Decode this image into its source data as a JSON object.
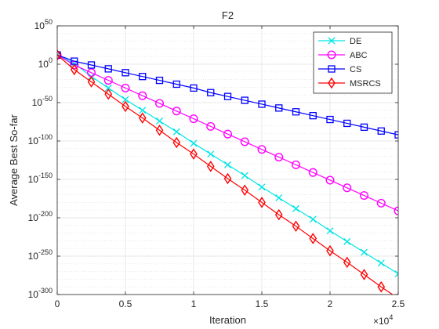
{
  "chart_data": {
    "type": "line",
    "title": "F2",
    "xlabel": "Iteration",
    "ylabel": "Average Best So-far",
    "x_multiplier": "×10^4",
    "xlim": [
      0,
      25000
    ],
    "ylim_log10": [
      -300,
      50
    ],
    "yscale": "log",
    "grid": true,
    "minor_grid": true,
    "legend_position": "top-right",
    "x_ticks": [
      "0",
      "0.5",
      "1",
      "1.5",
      "2",
      "2.5"
    ],
    "y_ticks": [
      {
        "base": "10",
        "exp": "50"
      },
      {
        "base": "10",
        "exp": "0"
      },
      {
        "base": "10",
        "exp": "-50"
      },
      {
        "base": "10",
        "exp": "-100"
      },
      {
        "base": "10",
        "exp": "-150"
      },
      {
        "base": "10",
        "exp": "-200"
      },
      {
        "base": "10",
        "exp": "-250"
      },
      {
        "base": "10",
        "exp": "-300"
      }
    ],
    "series": [
      {
        "name": "DE",
        "color": "#00e5e5",
        "marker": "x",
        "log10_points": [
          [
            0,
            12
          ],
          [
            1250,
            1
          ],
          [
            2500,
            -16
          ],
          [
            3750,
            -31
          ],
          [
            5000,
            -46
          ],
          [
            6250,
            -60
          ],
          [
            7500,
            -74
          ],
          [
            8750,
            -88
          ],
          [
            10000,
            -103
          ],
          [
            11250,
            -117
          ],
          [
            12500,
            -131
          ],
          [
            13750,
            -145
          ],
          [
            15000,
            -160
          ],
          [
            16250,
            -174
          ],
          [
            17500,
            -188
          ],
          [
            18750,
            -202
          ],
          [
            20000,
            -217
          ],
          [
            21250,
            -231
          ],
          [
            22500,
            -245
          ],
          [
            23750,
            -259
          ],
          [
            25000,
            -273
          ]
        ]
      },
      {
        "name": "ABC",
        "color": "#ff00ff",
        "marker": "o",
        "log10_points": [
          [
            0,
            12
          ],
          [
            1250,
            -1
          ],
          [
            2500,
            -11
          ],
          [
            3750,
            -21
          ],
          [
            5000,
            -31
          ],
          [
            6250,
            -41
          ],
          [
            7500,
            -51
          ],
          [
            8750,
            -61
          ],
          [
            10000,
            -71
          ],
          [
            11250,
            -81
          ],
          [
            12500,
            -91
          ],
          [
            13750,
            -101
          ],
          [
            15000,
            -111
          ],
          [
            16250,
            -121
          ],
          [
            17500,
            -131
          ],
          [
            18750,
            -141
          ],
          [
            20000,
            -151
          ],
          [
            21250,
            -161
          ],
          [
            22500,
            -171
          ],
          [
            23750,
            -181
          ],
          [
            25000,
            -191
          ]
        ]
      },
      {
        "name": "CS",
        "color": "#0000ff",
        "marker": "s",
        "log10_points": [
          [
            0,
            12
          ],
          [
            1250,
            4
          ],
          [
            2500,
            -1
          ],
          [
            3750,
            -6
          ],
          [
            5000,
            -11
          ],
          [
            6250,
            -16
          ],
          [
            7500,
            -21
          ],
          [
            8750,
            -26
          ],
          [
            10000,
            -31
          ],
          [
            11250,
            -37
          ],
          [
            12500,
            -42
          ],
          [
            13750,
            -47
          ],
          [
            15000,
            -52
          ],
          [
            16250,
            -57
          ],
          [
            17500,
            -62
          ],
          [
            18750,
            -67
          ],
          [
            20000,
            -72
          ],
          [
            21250,
            -77
          ],
          [
            22500,
            -82
          ],
          [
            23750,
            -87
          ],
          [
            25000,
            -92
          ]
        ]
      },
      {
        "name": "MSRCS",
        "color": "#ff0000",
        "marker": "d",
        "log10_points": [
          [
            0,
            12
          ],
          [
            1250,
            -7
          ],
          [
            2500,
            -23
          ],
          [
            3750,
            -39
          ],
          [
            5000,
            -55
          ],
          [
            6250,
            -70
          ],
          [
            7500,
            -86
          ],
          [
            8750,
            -102
          ],
          [
            10000,
            -117
          ],
          [
            11250,
            -133
          ],
          [
            12500,
            -149
          ],
          [
            13750,
            -164
          ],
          [
            15000,
            -180
          ],
          [
            16250,
            -196
          ],
          [
            17500,
            -211
          ],
          [
            18750,
            -227
          ],
          [
            20000,
            -243
          ],
          [
            21250,
            -258
          ],
          [
            22500,
            -274
          ],
          [
            23750,
            -290
          ],
          [
            25000,
            -305
          ]
        ]
      }
    ]
  }
}
